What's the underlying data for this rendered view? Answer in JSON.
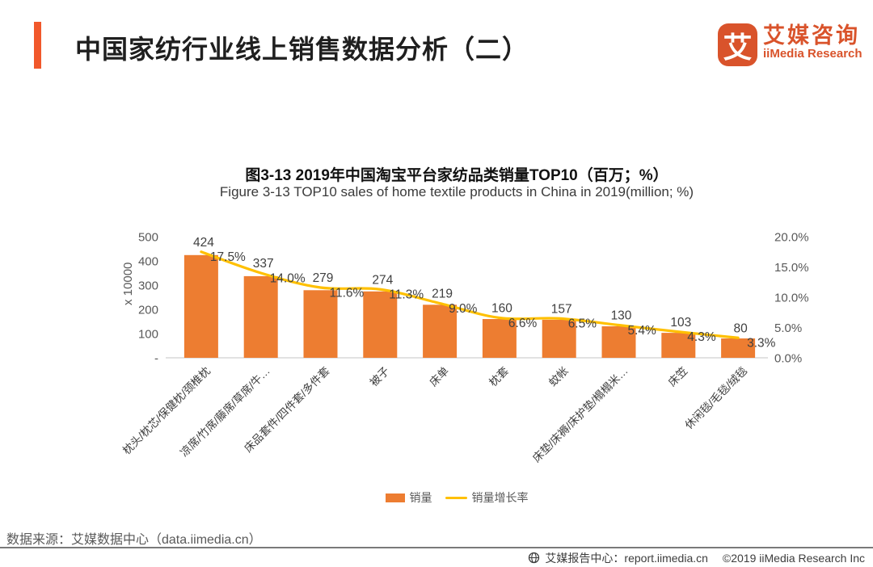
{
  "header": {
    "title": "中国家纺行业线上销售数据分析（二）",
    "logo": {
      "mark": "艾",
      "name_cn": "艾媒咨询",
      "name_en": "iiMedia Research"
    }
  },
  "chart_data": {
    "type": "bar+line combo",
    "title": "图3-13 2019年中国淘宝平台家纺品类销量TOP10（百万；%）",
    "subtitle": "Figure 3-13 TOP10 sales of home textile products in China in 2019(million; %)",
    "categories": [
      "枕头/枕芯/保健枕/颈椎枕",
      "凉席/竹席/藤席/草席/牛…",
      "床品套件/四件套/多件套",
      "被子",
      "床单",
      "枕套",
      "蚊帐",
      "床垫/床褥/床护垫/榻榻米…",
      "床笠",
      "休闲毯/毛毯/绒毯"
    ],
    "series": [
      {
        "name": "销量",
        "type": "bar",
        "axis": "left",
        "color": "#ed7d31",
        "values": [
          424,
          337,
          279,
          274,
          219,
          160,
          157,
          130,
          103,
          80
        ]
      },
      {
        "name": "销量增长率",
        "type": "line",
        "axis": "right",
        "color": "#ffc000",
        "values": [
          17.5,
          14.0,
          11.6,
          11.3,
          9.0,
          6.6,
          6.5,
          5.4,
          4.3,
          3.3
        ]
      }
    ],
    "left_axis": {
      "label": "x 10000",
      "min": 0,
      "max": 500,
      "ticks": [
        "500",
        "400",
        "300",
        "200",
        "100",
        "-"
      ]
    },
    "right_axis": {
      "min": 0,
      "max": 20,
      "ticks": [
        "20.0%",
        "15.0%",
        "10.0%",
        "5.0%",
        "0.0%"
      ]
    },
    "grid": "off",
    "legend_position": "bottom"
  },
  "footer": {
    "source": "数据来源：艾媒数据中心（data.iimedia.cn）",
    "site": "艾媒报告中心：report.iimedia.cn",
    "copyright": "©2019  iiMedia Research Inc"
  },
  "colors": {
    "brand_orange": "#d9532b",
    "accent_orange": "#f1582b",
    "bar_orange": "#ed7d31",
    "line_gold": "#ffc000",
    "axis_text": "#595959",
    "label_text": "#404040"
  }
}
